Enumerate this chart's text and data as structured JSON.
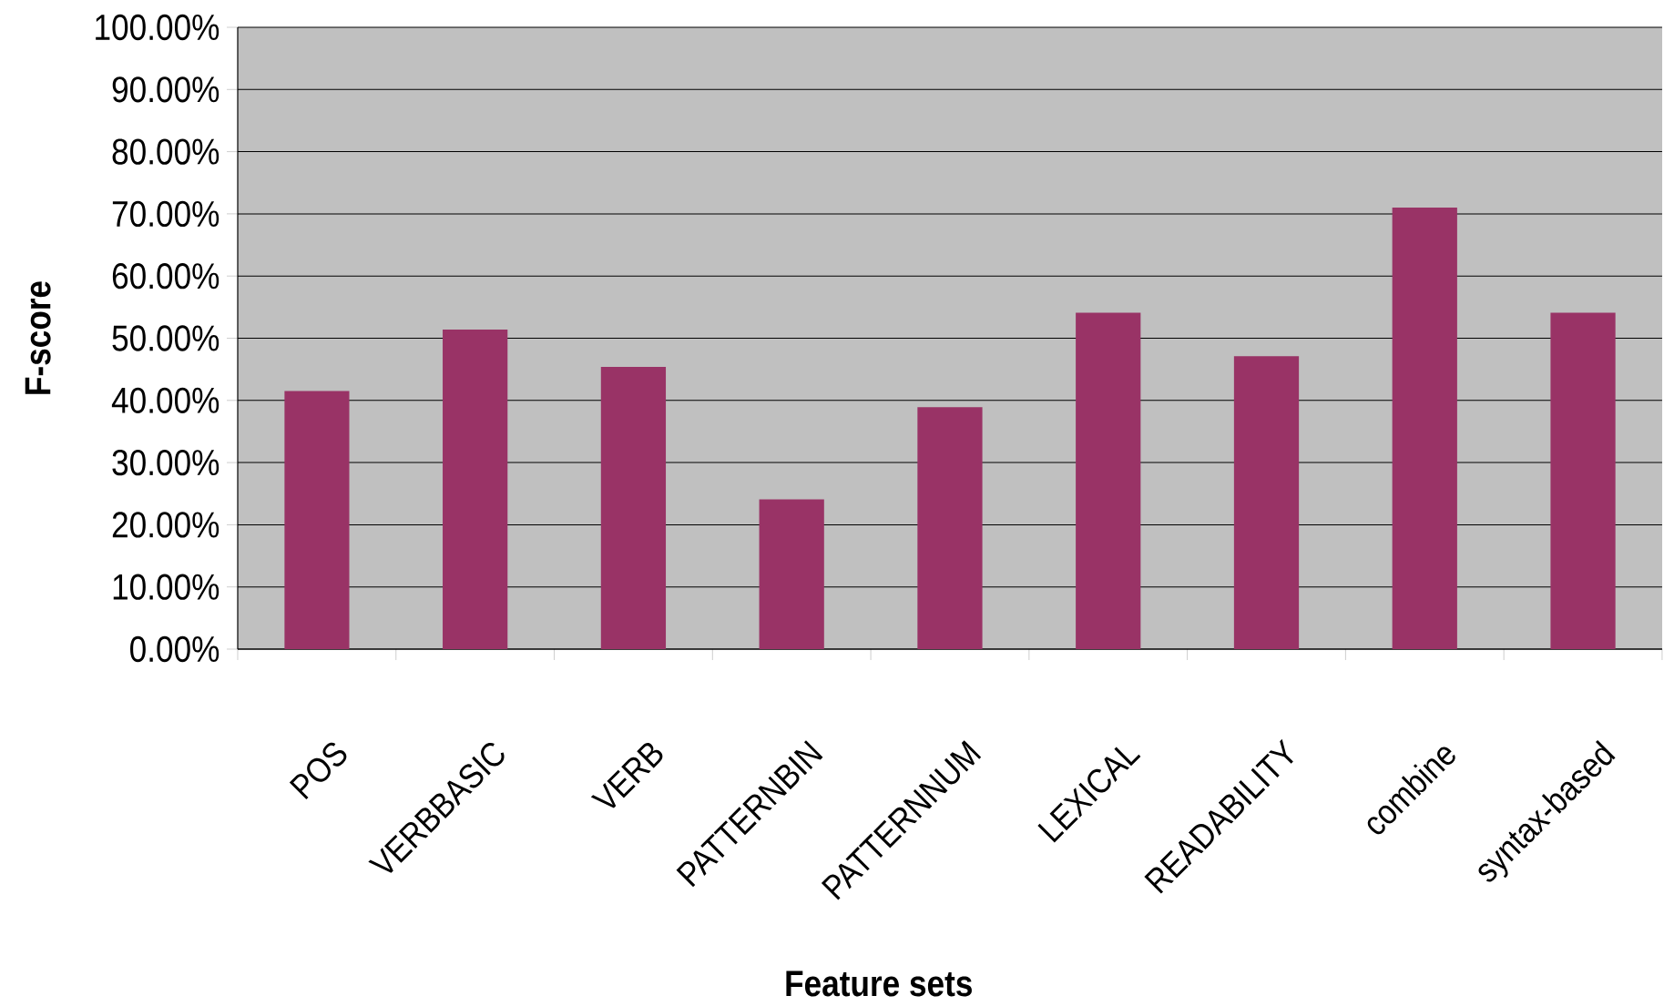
{
  "chart_data": {
    "type": "bar",
    "xlabel": "Feature sets",
    "ylabel": "F-score",
    "categories": [
      "POS",
      "VERBBASIC",
      "VERB",
      "PATTERNBIN",
      "PATTERNNUM",
      "LEXICAL",
      "READABILITY",
      "combine",
      "syntax-based"
    ],
    "values": [
      41.5,
      51.4,
      45.4,
      24.1,
      38.9,
      54.1,
      47.1,
      71.0,
      54.1
    ],
    "color": "#993366",
    "ylim": [
      0,
      100
    ],
    "yticks": [
      {
        "value": 0,
        "label": "0.00%"
      },
      {
        "value": 10,
        "label": "10.00%"
      },
      {
        "value": 20,
        "label": "20.00%"
      },
      {
        "value": 30,
        "label": "30.00%"
      },
      {
        "value": 40,
        "label": "40.00%"
      },
      {
        "value": 50,
        "label": "50.00%"
      },
      {
        "value": 60,
        "label": "60.00%"
      },
      {
        "value": 70,
        "label": "70.00%"
      },
      {
        "value": 80,
        "label": "80.00%"
      },
      {
        "value": 90,
        "label": "90.00%"
      },
      {
        "value": 100,
        "label": "100.00%"
      }
    ],
    "grid": "y"
  }
}
